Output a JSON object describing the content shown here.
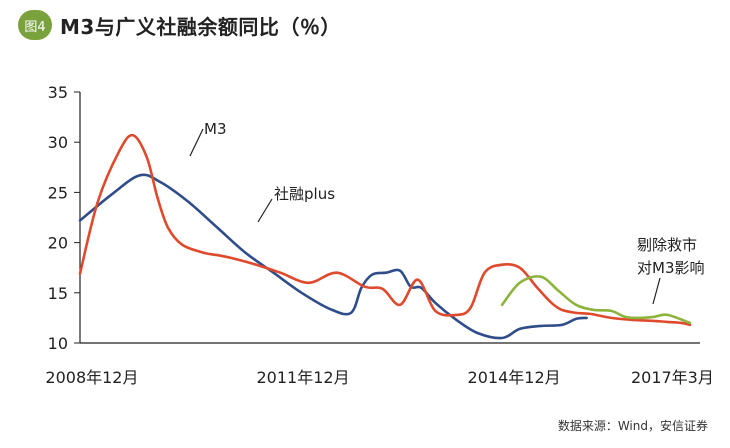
{
  "header": {
    "badge": "图4",
    "title": "M3与广义社融余额同比（％）"
  },
  "source": "数据来源：Wind，安信证券",
  "colors": {
    "m3": "#e04a2c",
    "social": "#2f4d8a",
    "adjusted": "#8cb43c",
    "badge": "#7aa23c"
  },
  "chart_data": {
    "type": "line",
    "title": "M3与广义社融余额同比（％）",
    "xlabel": "",
    "ylabel": "",
    "ylim": [
      10,
      35
    ],
    "yticks": [
      10,
      15,
      20,
      25,
      30,
      35
    ],
    "xlim": [
      2008.75,
      2017.42
    ],
    "xticks": [
      {
        "x": 2008.92,
        "label": "2008年12月"
      },
      {
        "x": 2011.92,
        "label": "2011年12月"
      },
      {
        "x": 2014.92,
        "label": "2014年12月"
      },
      {
        "x": 2017.17,
        "label": "2017年3月"
      }
    ],
    "grid": false,
    "legend": "none",
    "annotations": [
      {
        "text": "M3",
        "series": "m3"
      },
      {
        "text": "社融plus",
        "series": "social"
      },
      {
        "text": "剔除救市",
        "series": "adjusted"
      },
      {
        "text": "对M3影响",
        "series": "adjusted"
      }
    ],
    "series": [
      {
        "name": "M3",
        "key": "m3",
        "x": [
          2008.75,
          2009.0,
          2009.3,
          2009.5,
          2009.7,
          2009.85,
          2010.0,
          2010.2,
          2010.5,
          2010.75,
          2011.0,
          2011.3,
          2011.6,
          2012.0,
          2012.4,
          2012.8,
          2013.05,
          2013.3,
          2013.55,
          2013.8,
          2014.1,
          2014.3,
          2014.5,
          2014.75,
          2015.0,
          2015.25,
          2015.45,
          2015.6,
          2015.8,
          2016.0,
          2016.3,
          2016.6,
          2016.9,
          2017.1,
          2017.3,
          2017.42
        ],
        "y": [
          16.9,
          24.0,
          29.0,
          30.7,
          28.5,
          24.5,
          21.5,
          19.8,
          19.0,
          18.7,
          18.3,
          17.7,
          17.0,
          16.0,
          17.0,
          15.6,
          15.4,
          13.8,
          16.3,
          13.2,
          12.8,
          13.5,
          17.0,
          17.8,
          17.5,
          15.5,
          14.0,
          13.3,
          13.0,
          12.9,
          12.5,
          12.3,
          12.2,
          12.1,
          12.0,
          11.8
        ]
      },
      {
        "name": "社融plus",
        "key": "social",
        "x": [
          2008.75,
          2009.2,
          2009.6,
          2009.9,
          2010.3,
          2010.7,
          2011.1,
          2011.5,
          2011.9,
          2012.3,
          2012.6,
          2012.75,
          2012.9,
          2013.1,
          2013.3,
          2013.45,
          2013.6,
          2013.8,
          2014.1,
          2014.4,
          2014.75,
          2015.0,
          2015.3,
          2015.6,
          2015.8,
          2015.95
        ],
        "y": [
          22.2,
          24.8,
          26.7,
          26.0,
          24.0,
          21.5,
          19.0,
          17.0,
          15.0,
          13.4,
          13.0,
          15.5,
          16.8,
          17.0,
          17.2,
          15.6,
          15.5,
          14.0,
          12.3,
          11.0,
          10.5,
          11.4,
          11.7,
          11.8,
          12.4,
          12.5
        ]
      },
      {
        "name": "剔除救市对M3影响",
        "key": "adjusted",
        "x": [
          2014.75,
          2015.0,
          2015.3,
          2015.55,
          2015.8,
          2016.05,
          2016.3,
          2016.5,
          2016.7,
          2016.9,
          2017.1,
          2017.42
        ],
        "y": [
          13.8,
          16.0,
          16.6,
          15.2,
          13.8,
          13.3,
          13.2,
          12.6,
          12.5,
          12.6,
          12.8,
          12.0
        ]
      }
    ]
  }
}
